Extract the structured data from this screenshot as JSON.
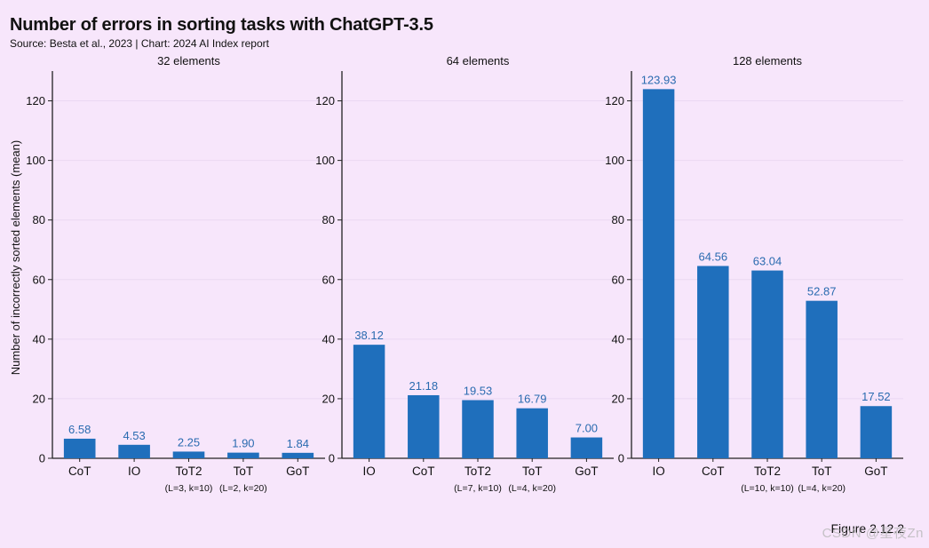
{
  "title": "Number of errors in sorting tasks with ChatGPT-3.5",
  "source": "Source: Besta et al., 2023 | Chart: 2024 AI Index report",
  "figure_label": "Figure 2.12.2",
  "watermark": "CSDN @星夜Zn",
  "colors": {
    "bar": "#1f6fbc",
    "value_label": "#2a6bb0",
    "grid": "#ead8f2",
    "axis": "#222222"
  },
  "chart_data": [
    {
      "type": "bar",
      "title": "32 elements",
      "ylabel": "Number of incorrectly sorted elements (mean)",
      "ylim": [
        0,
        130
      ],
      "yticks": [
        0,
        20,
        40,
        60,
        80,
        100,
        120
      ],
      "categories": [
        "CoT",
        "IO",
        "ToT2",
        "ToT",
        "GoT"
      ],
      "values": [
        6.58,
        4.53,
        2.25,
        1.9,
        1.84
      ],
      "value_labels": [
        "6.58",
        "4.53",
        "2.25",
        "1.90",
        "1.84"
      ],
      "sublabels": [
        "",
        "",
        "(L=3, k=10)",
        "(L=2, k=20)",
        ""
      ]
    },
    {
      "type": "bar",
      "title": "64 elements",
      "ylim": [
        0,
        130
      ],
      "yticks": [
        0,
        20,
        40,
        60,
        80,
        100,
        120
      ],
      "categories": [
        "IO",
        "CoT",
        "ToT2",
        "ToT",
        "GoT"
      ],
      "values": [
        38.12,
        21.18,
        19.53,
        16.79,
        7.0
      ],
      "value_labels": [
        "38.12",
        "21.18",
        "19.53",
        "16.79",
        "7.00"
      ],
      "sublabels": [
        "",
        "",
        "(L=7, k=10)",
        "(L=4, k=20)",
        ""
      ]
    },
    {
      "type": "bar",
      "title": "128 elements",
      "ylim": [
        0,
        130
      ],
      "yticks": [
        0,
        20,
        40,
        60,
        80,
        100,
        120
      ],
      "categories": [
        "IO",
        "CoT",
        "ToT2",
        "ToT",
        "GoT"
      ],
      "values": [
        123.93,
        64.56,
        63.04,
        52.87,
        17.52
      ],
      "value_labels": [
        "123.93",
        "64.56",
        "63.04",
        "52.87",
        "17.52"
      ],
      "sublabels": [
        "",
        "",
        "(L=10, k=10)",
        "(L=4, k=20)",
        ""
      ]
    }
  ]
}
